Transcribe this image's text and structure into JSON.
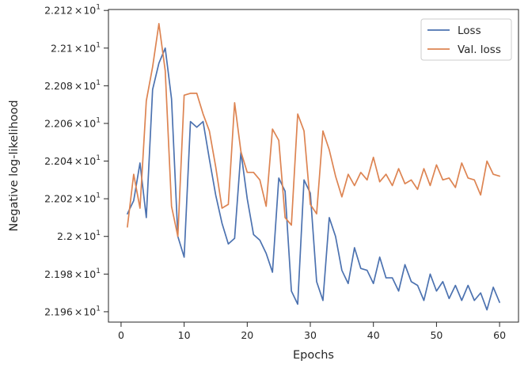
{
  "chart_data": {
    "type": "line",
    "title": "",
    "xlabel": "Epochs",
    "ylabel": "Negative log-likelihood",
    "xlim": [
      -2,
      63
    ],
    "ylim": [
      21.9545,
      22.1205
    ],
    "x_ticks": [
      0,
      10,
      20,
      30,
      40,
      50,
      60
    ],
    "x_tick_labels": [
      "0",
      "10",
      "20",
      "30",
      "40",
      "50",
      "60"
    ],
    "y_ticks": [
      21.96,
      21.98,
      22.0,
      22.02,
      22.04,
      22.06,
      22.08,
      22.1,
      22.12
    ],
    "y_tick_mantissas": [
      "2.196",
      "2.198",
      "2.2",
      "2.202",
      "2.204",
      "2.206",
      "2.208",
      "2.21",
      "2.212"
    ],
    "y_tick_base": "10",
    "y_tick_exponent": "1",
    "y_tick_multiplier": "×",
    "grid": false,
    "legend_position": "upper-right",
    "x": [
      1,
      2,
      3,
      4,
      5,
      6,
      7,
      8,
      9,
      10,
      11,
      12,
      13,
      14,
      15,
      16,
      17,
      18,
      19,
      20,
      21,
      22,
      23,
      24,
      25,
      26,
      27,
      28,
      29,
      30,
      31,
      32,
      33,
      34,
      35,
      36,
      37,
      38,
      39,
      40,
      41,
      42,
      43,
      44,
      45,
      46,
      47,
      48,
      49,
      50,
      51,
      52,
      53,
      54,
      55,
      56,
      57,
      58,
      59,
      60
    ],
    "series": [
      {
        "name": "Loss",
        "color": "#4c72b0",
        "values": [
          22.012,
          22.019,
          22.039,
          22.01,
          22.078,
          22.092,
          22.1,
          22.073,
          22.0,
          21.989,
          22.061,
          22.058,
          22.061,
          22.041,
          22.022,
          22.007,
          21.996,
          21.999,
          22.045,
          22.02,
          22.001,
          21.998,
          21.991,
          21.981,
          22.031,
          22.024,
          21.971,
          21.964,
          22.03,
          22.023,
          21.976,
          21.966,
          22.01,
          22.0,
          21.982,
          21.975,
          21.994,
          21.983,
          21.982,
          21.975,
          21.989,
          21.978,
          21.978,
          21.971,
          21.985,
          21.976,
          21.974,
          21.966,
          21.98,
          21.971,
          21.976,
          21.967,
          21.974,
          21.966,
          21.974,
          21.966,
          21.97,
          21.961,
          21.973,
          21.965
        ]
      },
      {
        "name": "Val. loss",
        "color": "#dd8452",
        "values": [
          22.005,
          22.033,
          22.015,
          22.072,
          22.09,
          22.113,
          22.088,
          22.016,
          22.0,
          22.075,
          22.076,
          22.076,
          22.065,
          22.056,
          22.037,
          22.015,
          22.017,
          22.071,
          22.045,
          22.034,
          22.034,
          22.03,
          22.016,
          22.057,
          22.051,
          22.01,
          22.006,
          22.065,
          22.056,
          22.017,
          22.012,
          22.056,
          22.046,
          22.032,
          22.021,
          22.033,
          22.027,
          22.034,
          22.03,
          22.042,
          22.029,
          22.033,
          22.027,
          22.036,
          22.028,
          22.03,
          22.025,
          22.036,
          22.027,
          22.038,
          22.03,
          22.031,
          22.026,
          22.039,
          22.031,
          22.03,
          22.022,
          22.04,
          22.033,
          22.032
        ]
      }
    ]
  }
}
